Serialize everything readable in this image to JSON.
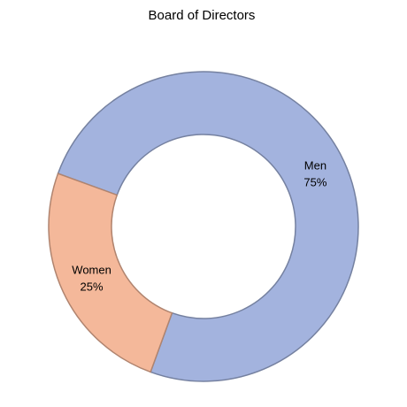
{
  "chart_data": {
    "type": "donut",
    "title": "Board of Directors",
    "categories": [
      "Men",
      "Women"
    ],
    "values": [
      75,
      25
    ],
    "value_labels": [
      "75%",
      "25%"
    ],
    "colors": [
      "#a3b3de",
      "#f4b89a"
    ]
  }
}
